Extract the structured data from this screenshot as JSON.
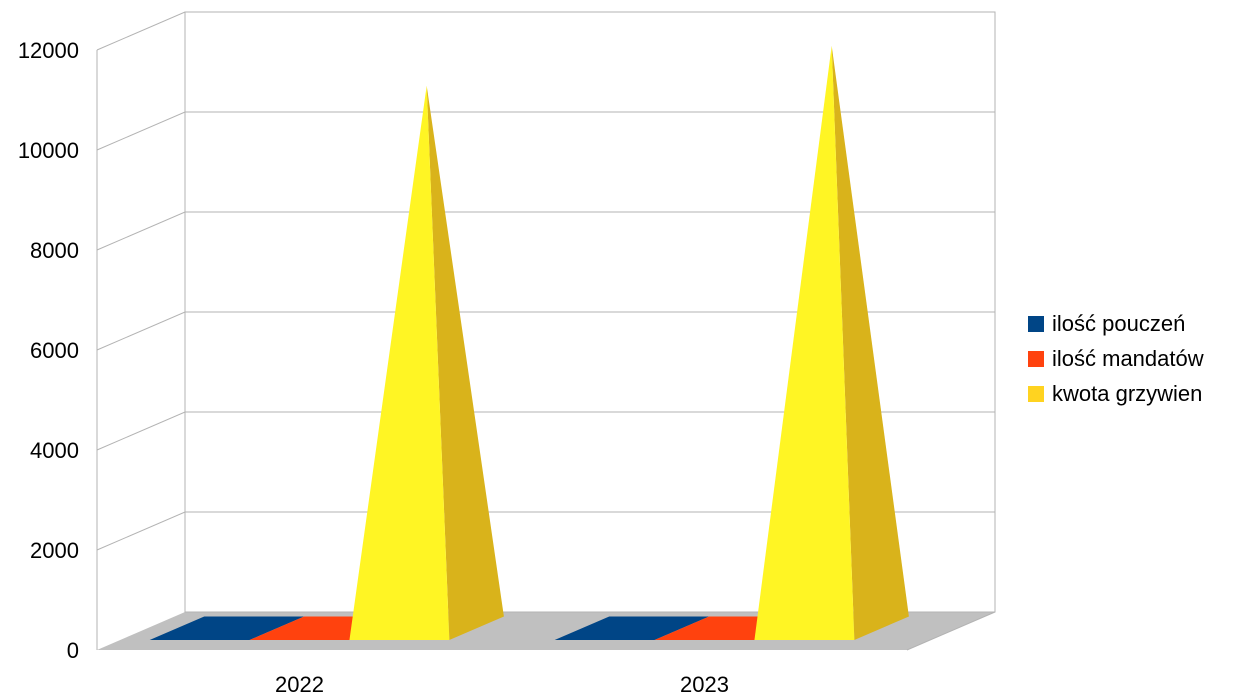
{
  "chart_data": {
    "type": "bar",
    "categories": [
      "2022",
      "2023"
    ],
    "series": [
      {
        "name": "ilość pouczeń",
        "values": [
          7,
          12
        ],
        "color": "#004586"
      },
      {
        "name": "ilość mandatów",
        "values": [
          5,
          8
        ],
        "color": "#ff420e"
      },
      {
        "name": "kwota grzywien",
        "values": [
          10850,
          11650
        ],
        "color": "#ffd320"
      }
    ],
    "ylim": [
      0,
      12000
    ],
    "yticks": [
      "0",
      "2000",
      "4000",
      "6000",
      "8000",
      "10000",
      "12000"
    ],
    "grid": true,
    "legend": "right",
    "bar_shape": "pyramid",
    "wall_color": "#c0c0c0"
  }
}
